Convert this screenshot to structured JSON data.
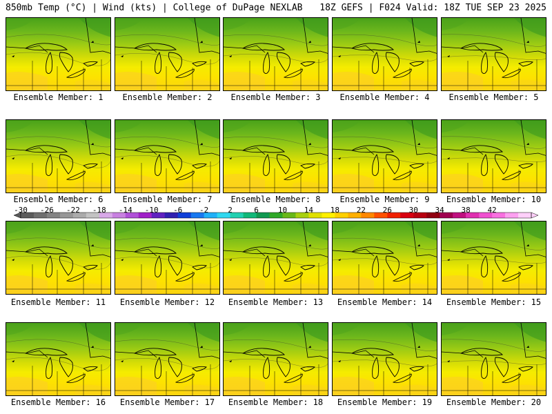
{
  "header": {
    "left": "850mb Temp (°C) | Wind (kts) | College of DuPage NEXLAB",
    "right": "18Z GEFS | F024 Valid: 18Z TUE SEP 23 2025"
  },
  "panels": [
    {
      "label": "Ensemble Member: 1"
    },
    {
      "label": "Ensemble Member: 2"
    },
    {
      "label": "Ensemble Member: 3"
    },
    {
      "label": "Ensemble Member: 4"
    },
    {
      "label": "Ensemble Member: 5"
    },
    {
      "label": "Ensemble Member: 6"
    },
    {
      "label": "Ensemble Member: 7"
    },
    {
      "label": "Ensemble Member: 8"
    },
    {
      "label": "Ensemble Member: 9"
    },
    {
      "label": "Ensemble Member: 10"
    },
    {
      "label": "Ensemble Member: 11"
    },
    {
      "label": "Ensemble Member: 12"
    },
    {
      "label": "Ensemble Member: 13"
    },
    {
      "label": "Ensemble Member: 14"
    },
    {
      "label": "Ensemble Member: 15"
    },
    {
      "label": "Ensemble Member: 16"
    },
    {
      "label": "Ensemble Member: 17"
    },
    {
      "label": "Ensemble Member: 18"
    },
    {
      "label": "Ensemble Member: 19"
    },
    {
      "label": "Ensemble Member: 20"
    }
  ],
  "colorbar": {
    "labels": [
      "-30",
      "-26",
      "-22",
      "-18",
      "-14",
      "-10",
      "-6",
      "-2",
      "2",
      "6",
      "10",
      "14",
      "18",
      "22",
      "26",
      "30",
      "34",
      "38",
      "42"
    ],
    "colors": [
      "#5b5b5b",
      "#6f6f6f",
      "#838383",
      "#979797",
      "#ababab",
      "#c3c3c3",
      "#d8a8e8",
      "#c880e0",
      "#b050d8",
      "#a020c8",
      "#6020c0",
      "#3020b0",
      "#1040d8",
      "#1878f0",
      "#20b0f8",
      "#30d8f0",
      "#20d0b0",
      "#10b878",
      "#109850",
      "#30a828",
      "#68b818",
      "#a8d010",
      "#e0e000",
      "#fff000",
      "#ffd000",
      "#ffb000",
      "#ff8800",
      "#ff5000",
      "#f02000",
      "#d80010",
      "#b80010",
      "#900010",
      "#a00050",
      "#c01080",
      "#e030b0",
      "#f050d0",
      "#f870e0",
      "#fca0f0",
      "#ffd0fa"
    ]
  }
}
